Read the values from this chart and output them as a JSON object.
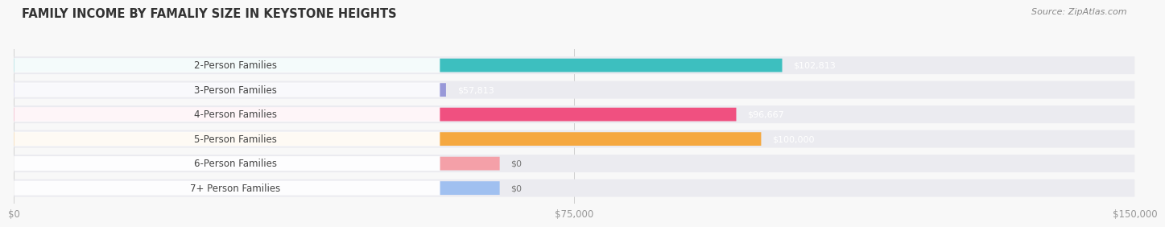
{
  "title": "FAMILY INCOME BY FAMALIY SIZE IN KEYSTONE HEIGHTS",
  "source": "Source: ZipAtlas.com",
  "categories": [
    "2-Person Families",
    "3-Person Families",
    "4-Person Families",
    "5-Person Families",
    "6-Person Families",
    "7+ Person Families"
  ],
  "values": [
    102813,
    57813,
    96667,
    100000,
    0,
    0
  ],
  "bar_colors": [
    "#3dbfbf",
    "#9898d8",
    "#f05080",
    "#f5a840",
    "#f4a0a8",
    "#a0c0f0"
  ],
  "bar_bg_color": "#ebebf0",
  "value_labels": [
    "$102,813",
    "$57,813",
    "$96,667",
    "$100,000",
    "$0",
    "$0"
  ],
  "xlim_max": 150000,
  "xtick_values": [
    0,
    75000,
    150000
  ],
  "xtick_labels": [
    "$0",
    "$75,000",
    "$150,000"
  ],
  "background_color": "#f8f8f8",
  "title_fontsize": 10.5,
  "label_fontsize": 8.5,
  "value_fontsize": 8.0,
  "tick_fontsize": 8.5,
  "source_fontsize": 8.0
}
